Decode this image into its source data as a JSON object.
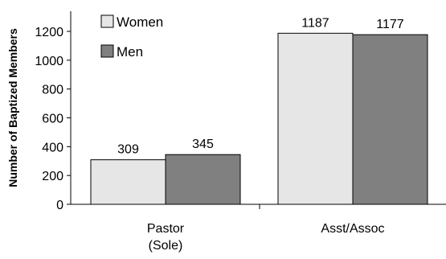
{
  "chart_data": {
    "type": "bar",
    "title": "",
    "xlabel": "",
    "ylabel": "Number of Baptized Members",
    "categories": [
      [
        "Pastor",
        "(Sole)"
      ],
      [
        "Asst/Assoc"
      ]
    ],
    "series": [
      {
        "name": "Women",
        "values": [
          309,
          1187
        ],
        "color": "#e6e6e6"
      },
      {
        "name": "Men",
        "values": [
          345,
          1177
        ],
        "color": "#808080"
      }
    ],
    "ylim": [
      0,
      1200
    ],
    "yticks": [
      0,
      200,
      400,
      600,
      800,
      1000,
      1200
    ],
    "grid": false,
    "legend": "top-left"
  }
}
